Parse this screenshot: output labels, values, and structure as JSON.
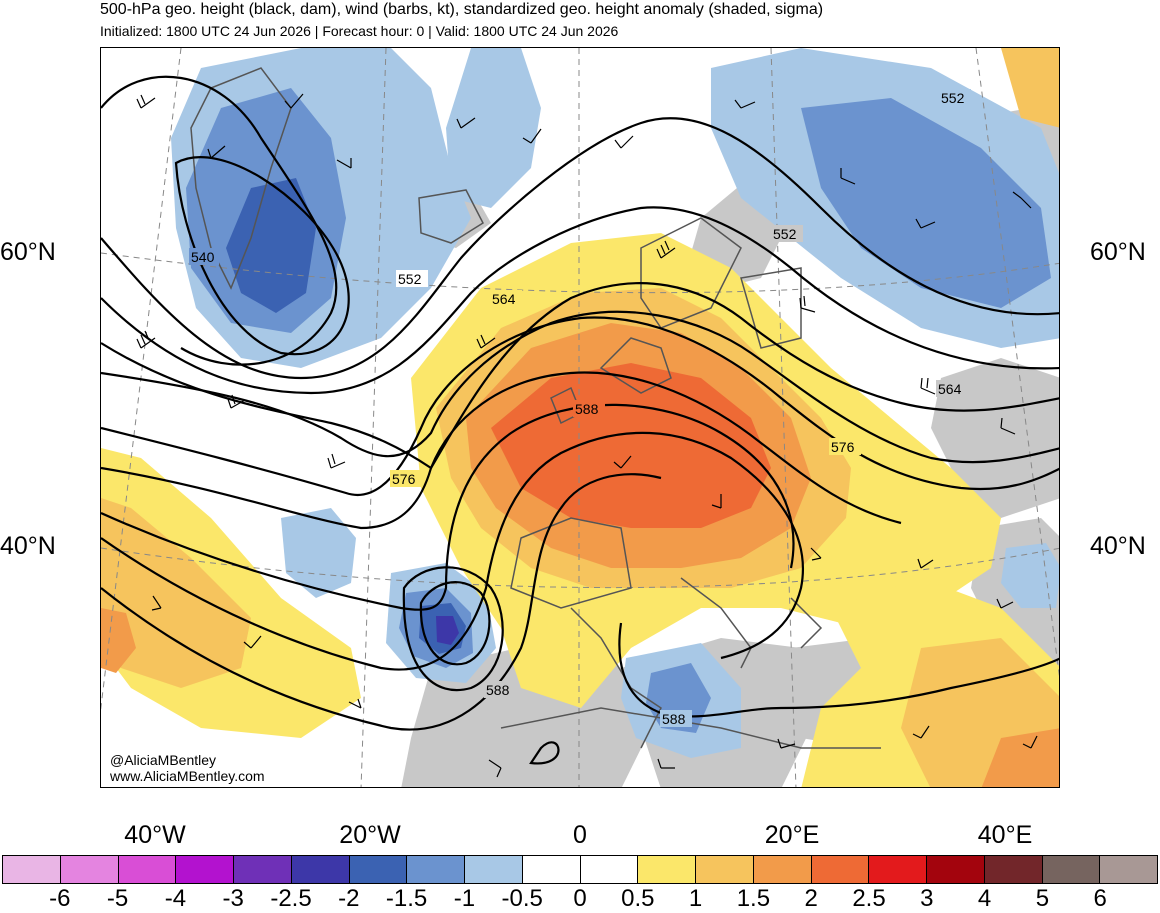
{
  "header": {
    "title": "500-hPa geo. height (black, dam), wind (barbs, kt), standardized geo. height anomaly (shaded, sigma)",
    "subtitle": "Initialized: 1800 UTC 24 Jun 2026 | Forecast hour: 0 | Valid: 1800 UTC 24 Jun 2026"
  },
  "map": {
    "lat_labels": [
      "60°N",
      "40°N"
    ],
    "lon_labels": [
      "40°W",
      "20°W",
      "0",
      "20°E",
      "40°E"
    ],
    "contour_labels": [
      "540",
      "552",
      "552",
      "552",
      "564",
      "564",
      "576",
      "576",
      "588",
      "588",
      "588"
    ],
    "credit_handle": "@AliciaMBentley",
    "credit_url": "www.AliciaMBentley.com",
    "colors": {
      "land_gray": "#c8c8c8",
      "coast": "#555555",
      "contour": "#000000"
    }
  },
  "legend": {
    "colors": [
      "#e9b5e5",
      "#e484e0",
      "#d94ed6",
      "#b312cf",
      "#6f30b7",
      "#3d37a8",
      "#3b62b2",
      "#6b93cf",
      "#a8c8e6",
      "#ffffff",
      "#ffffff",
      "#fbe76a",
      "#f6c45d",
      "#f29b4a",
      "#ee6a35",
      "#e31a1c",
      "#a3040d",
      "#72262a",
      "#76645f",
      "#a89895"
    ],
    "ticks": [
      "-6",
      "-5",
      "-4",
      "-3",
      "-2.5",
      "-2",
      "-1.5",
      "-1",
      "-0.5",
      "0",
      "0.5",
      "1",
      "1.5",
      "2",
      "2.5",
      "3",
      "4",
      "5",
      "6"
    ]
  }
}
